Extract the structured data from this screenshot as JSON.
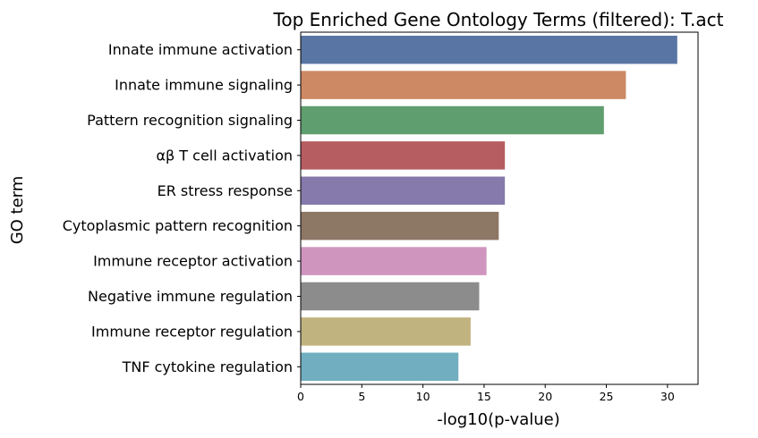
{
  "chart_data": {
    "type": "bar",
    "orientation": "horizontal",
    "title": "Top Enriched Gene Ontology Terms (filtered): T.act",
    "xlabel": "-log10(p-value)",
    "ylabel": "GO term",
    "xlim": [
      0,
      32.5
    ],
    "xticks": [
      0,
      5,
      10,
      15,
      20,
      25,
      30
    ],
    "grid": false,
    "categories": [
      "Innate immune activation",
      "Innate immune signaling",
      "Pattern recognition signaling",
      "αβ T cell activation",
      "ER stress response",
      "Cytoplasmic pattern recognition",
      "Immune receptor activation",
      "Negative immune regulation",
      "Immune receptor regulation",
      "TNF cytokine regulation"
    ],
    "values": [
      30.8,
      26.6,
      24.8,
      16.7,
      16.7,
      16.2,
      15.2,
      14.6,
      13.9,
      12.9
    ],
    "colors": [
      "#5875a4",
      "#cc8963",
      "#5f9e6e",
      "#b55d60",
      "#857aab",
      "#8d7866",
      "#d095bf",
      "#8c8c8c",
      "#c1b37f",
      "#71aec0"
    ]
  }
}
